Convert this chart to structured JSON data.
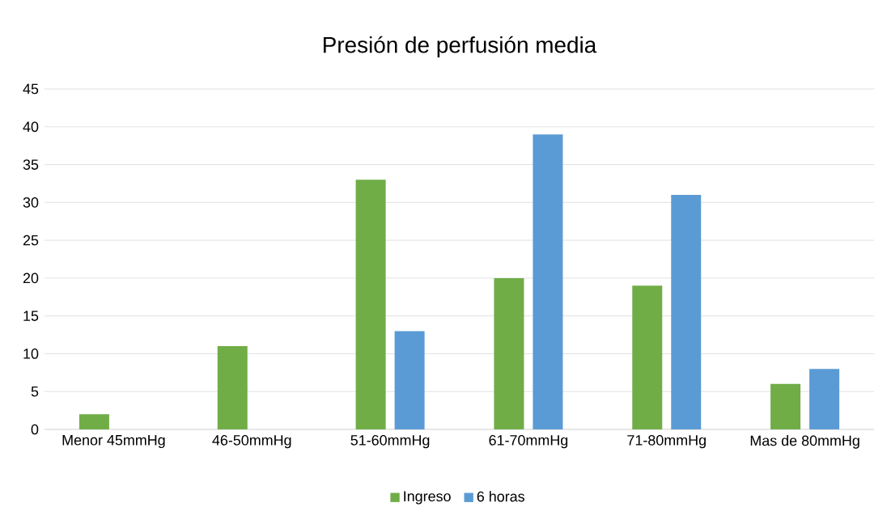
{
  "chart_data": {
    "type": "bar",
    "title": "Presión de perfusión media",
    "categories": [
      "Menor 45mmHg",
      "46-50mmHg",
      "51-60mmHg",
      "61-70mmHg",
      "71-80mmHg",
      "Mas de 80mmHg"
    ],
    "series": [
      {
        "name": "Ingreso",
        "color": "#70ad47",
        "values": [
          2,
          11,
          33,
          20,
          19,
          6
        ]
      },
      {
        "name": "6 horas",
        "color": "#5b9bd5",
        "values": [
          0,
          0,
          13,
          39,
          31,
          8
        ]
      }
    ],
    "ylim": [
      0,
      45
    ],
    "yticks": [
      0,
      5,
      10,
      15,
      20,
      25,
      30,
      35,
      40,
      45
    ],
    "grid": "y",
    "legend": "bottom"
  }
}
